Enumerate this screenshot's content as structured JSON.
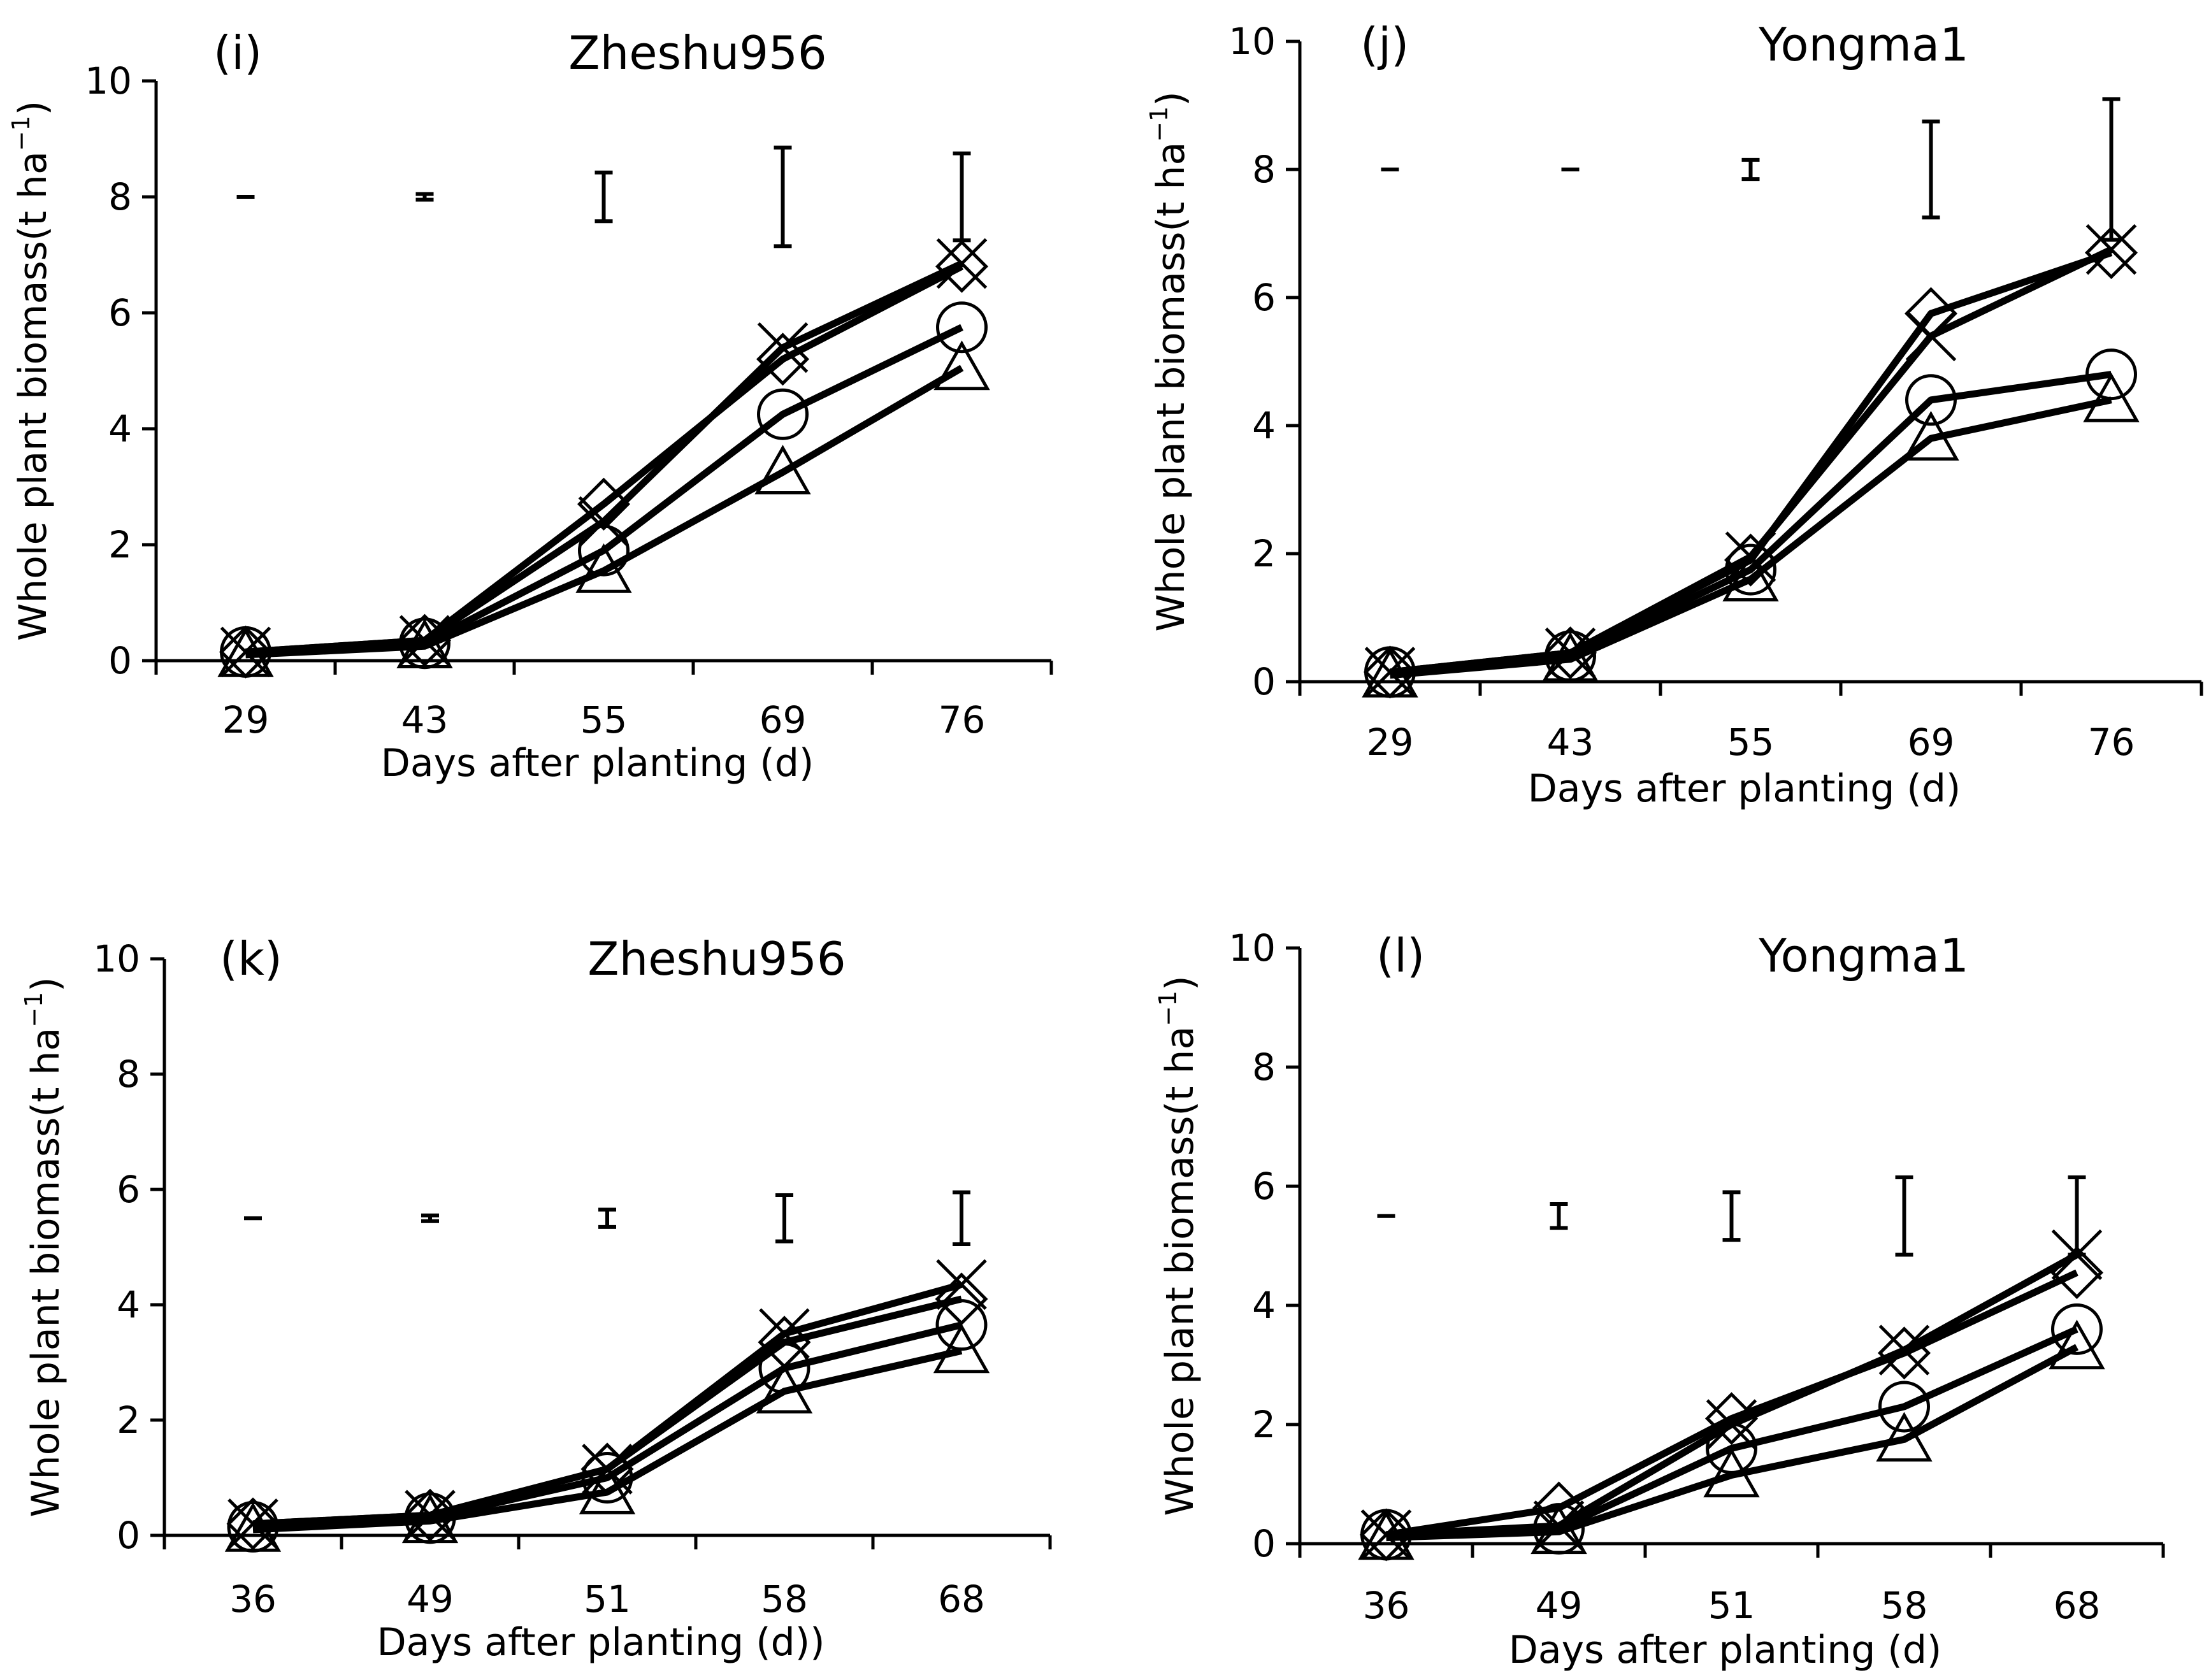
{
  "chart_data": [
    {
      "type": "line",
      "panel": "(i)",
      "title": "Zheshu956",
      "xlabel": "Days after planting (d)",
      "ylabel": "Whole plant biomass(t ha",
      "ylabel_sup": "−1",
      "ylabel_close": ")",
      "ylim": [
        0,
        10
      ],
      "yticks": [
        "0",
        "2",
        "4",
        "6",
        "8",
        "10"
      ],
      "categories": [
        "29",
        "43",
        "55",
        "69",
        "76"
      ],
      "series": [
        {
          "name": "diamond",
          "marker": "diamond",
          "values": [
            0.15,
            0.35,
            2.7,
            5.2,
            6.8
          ]
        },
        {
          "name": "cross",
          "marker": "cross",
          "values": [
            0.15,
            0.35,
            2.4,
            5.4,
            6.85
          ]
        },
        {
          "name": "circle",
          "marker": "circle",
          "values": [
            0.15,
            0.3,
            1.9,
            4.25,
            5.75
          ]
        },
        {
          "name": "triangle",
          "marker": "triangle",
          "values": [
            0.1,
            0.25,
            1.55,
            3.25,
            5.05
          ]
        }
      ],
      "error_bars": {
        "center": 8.0,
        "half_width": [
          0.02,
          0.05,
          0.42,
          0.85,
          0.75
        ]
      }
    },
    {
      "type": "line",
      "panel": "(j)",
      "title": "Yongma1",
      "xlabel": "Days after planting (d)",
      "ylabel": "Whole plant biomass(t ha",
      "ylabel_sup": "−1",
      "ylabel_close": ")",
      "ylim": [
        0,
        10
      ],
      "yticks": [
        "0",
        "2",
        "4",
        "6",
        "8",
        "10"
      ],
      "categories": [
        "29",
        "43",
        "55",
        "69",
        "76"
      ],
      "series": [
        {
          "name": "diamond",
          "marker": "diamond",
          "values": [
            0.15,
            0.45,
            1.9,
            5.75,
            6.7
          ]
        },
        {
          "name": "cross",
          "marker": "cross",
          "values": [
            0.15,
            0.45,
            1.95,
            5.4,
            6.75
          ]
        },
        {
          "name": "circle",
          "marker": "circle",
          "values": [
            0.15,
            0.4,
            1.75,
            4.4,
            4.8
          ]
        },
        {
          "name": "triangle",
          "marker": "triangle",
          "values": [
            0.1,
            0.35,
            1.6,
            3.8,
            4.4
          ]
        }
      ],
      "error_bars": {
        "center": 8.0,
        "half_width": [
          0.02,
          0.02,
          0.15,
          0.75,
          1.1
        ]
      }
    },
    {
      "type": "line",
      "panel": "(k)",
      "title": "Zheshu956",
      "xlabel": "Days after planting (d))",
      "ylabel": "Whole plant biomass(t ha",
      "ylabel_sup": "−1",
      "ylabel_close": ")",
      "ylim": [
        0,
        10
      ],
      "yticks": [
        "0",
        "2",
        "4",
        "6",
        "8",
        "10"
      ],
      "categories": [
        "36",
        "49",
        "51",
        "58",
        "68"
      ],
      "series": [
        {
          "name": "diamond",
          "marker": "diamond",
          "values": [
            0.2,
            0.35,
            1.15,
            3.35,
            4.1
          ]
        },
        {
          "name": "cross",
          "marker": "cross",
          "values": [
            0.2,
            0.35,
            1.15,
            3.5,
            4.35
          ]
        },
        {
          "name": "circle",
          "marker": "circle",
          "values": [
            0.15,
            0.3,
            1.0,
            2.9,
            3.65
          ]
        },
        {
          "name": "triangle",
          "marker": "triangle",
          "values": [
            0.1,
            0.25,
            0.75,
            2.5,
            3.2
          ]
        }
      ],
      "error_bars": {
        "center": 5.5,
        "half_width": [
          0.02,
          0.05,
          0.15,
          0.4,
          0.45
        ]
      }
    },
    {
      "type": "line",
      "panel": "(l)",
      "title": "Yongma1",
      "xlabel": "Days after planting (d)",
      "ylabel": "Whole plant biomass(t ha",
      "ylabel_sup": "−1",
      "ylabel_close": ")",
      "ylim": [
        0,
        10
      ],
      "yticks": [
        "0",
        "2",
        "4",
        "6",
        "8",
        "10"
      ],
      "categories": [
        "36",
        "49",
        "51",
        "58",
        "68"
      ],
      "series": [
        {
          "name": "diamond",
          "marker": "diamond",
          "values": [
            0.15,
            0.6,
            2.1,
            3.2,
            4.55
          ]
        },
        {
          "name": "cross",
          "marker": "cross",
          "values": [
            0.15,
            0.3,
            2.0,
            3.25,
            4.85
          ]
        },
        {
          "name": "circle",
          "marker": "circle",
          "values": [
            0.15,
            0.25,
            1.6,
            2.3,
            3.6
          ]
        },
        {
          "name": "triangle",
          "marker": "triangle",
          "values": [
            0.1,
            0.2,
            1.15,
            1.75,
            3.3
          ]
        }
      ],
      "error_bars": {
        "center": 5.5,
        "half_width": [
          0.02,
          0.2,
          0.4,
          0.65,
          0.65
        ]
      }
    }
  ]
}
